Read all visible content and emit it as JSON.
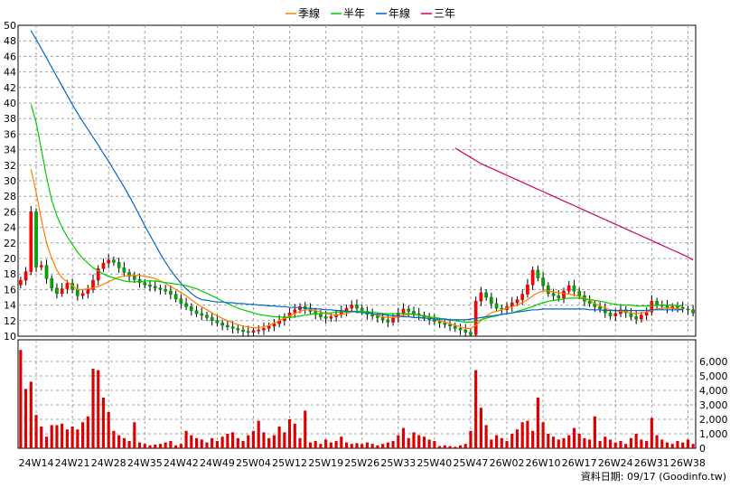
{
  "chart_data": {
    "type": "candlestick",
    "legend": [
      {
        "name": "季線",
        "color": "#ff7f00"
      },
      {
        "name": "半年",
        "color": "#00cc00"
      },
      {
        "name": "年線",
        "color": "#0066cc"
      },
      {
        "name": "三年",
        "color": "#cc0066"
      }
    ],
    "price_axis": {
      "ylim": [
        10,
        50
      ],
      "ticks": [
        10,
        12,
        14,
        16,
        18,
        20,
        22,
        24,
        26,
        28,
        30,
        32,
        34,
        36,
        38,
        40,
        42,
        44,
        46,
        48,
        50
      ]
    },
    "volume_axis": {
      "ylim": [
        0,
        7500
      ],
      "ticks": [
        0,
        1000,
        2000,
        3000,
        4000,
        5000,
        6000
      ],
      "tick_labels": [
        "0",
        "1,000",
        "2,000",
        "3,000",
        "4,000",
        "5,000",
        "6,000"
      ]
    },
    "x_ticks": [
      {
        "index": 3,
        "label": "24W14"
      },
      {
        "index": 10,
        "label": "24W21"
      },
      {
        "index": 17,
        "label": "24W28"
      },
      {
        "index": 24,
        "label": "24W35"
      },
      {
        "index": 31,
        "label": "24W42"
      },
      {
        "index": 38,
        "label": "24W49"
      },
      {
        "index": 45,
        "label": "25W04"
      },
      {
        "index": 52,
        "label": "25W12"
      },
      {
        "index": 59,
        "label": "25W19"
      },
      {
        "index": 66,
        "label": "25W26"
      },
      {
        "index": 73,
        "label": "25W33"
      },
      {
        "index": 80,
        "label": "25W40"
      },
      {
        "index": 87,
        "label": "25W47"
      },
      {
        "index": 94,
        "label": "26W02"
      },
      {
        "index": 101,
        "label": "26W10"
      },
      {
        "index": 108,
        "label": "26W17"
      },
      {
        "index": 115,
        "label": "26W24"
      },
      {
        "index": 122,
        "label": "26W31"
      },
      {
        "index": 129,
        "label": "26W38"
      }
    ],
    "bar_count": 131,
    "closes": [
      17.2,
      18.3,
      26.0,
      18.9,
      19.1,
      17.4,
      16.2,
      15.5,
      16.1,
      16.8,
      16.0,
      15.2,
      15.5,
      16.0,
      17.2,
      18.7,
      19.4,
      19.8,
      19.5,
      18.8,
      18.2,
      17.7,
      17.3,
      16.9,
      16.6,
      16.4,
      16.2,
      16.0,
      15.8,
      15.4,
      14.8,
      14.2,
      13.8,
      13.3,
      12.9,
      12.7,
      12.4,
      12.0,
      11.7,
      11.4,
      11.2,
      11.0,
      10.8,
      10.6,
      10.5,
      10.7,
      10.8,
      11.0,
      11.3,
      11.6,
      12.0,
      12.5,
      13.0,
      13.4,
      13.8,
      13.5,
      13.2,
      12.8,
      12.5,
      12.3,
      12.5,
      12.8,
      13.2,
      13.6,
      14.0,
      13.6,
      13.2,
      12.8,
      12.6,
      12.4,
      12.1,
      11.8,
      12.4,
      13.0,
      13.5,
      13.2,
      12.9,
      12.7,
      12.4,
      12.1,
      11.9,
      11.7,
      11.5,
      11.3,
      11.0,
      10.8,
      10.5,
      10.2,
      14.5,
      15.6,
      15.0,
      14.2,
      13.6,
      13.4,
      13.8,
      14.3,
      14.7,
      15.4,
      16.6,
      18.5,
      17.5,
      16.5,
      15.5,
      15.2,
      14.9,
      15.8,
      16.5,
      15.8,
      15.2,
      14.5,
      14.2,
      13.8,
      13.5,
      13.0,
      12.6,
      12.9,
      13.4,
      13.0,
      12.5,
      12.2,
      12.7,
      13.1,
      14.5,
      14.0,
      13.9,
      13.6,
      13.8,
      13.7,
      13.5,
      13.4,
      13.0
    ],
    "volumes": [
      6800,
      4100,
      4600,
      2300,
      1500,
      800,
      1600,
      1600,
      1700,
      1300,
      1500,
      1300,
      1800,
      2200,
      5500,
      5400,
      3500,
      2500,
      1200,
      900,
      700,
      500,
      1800,
      400,
      300,
      200,
      250,
      300,
      400,
      500,
      200,
      300,
      1200,
      900,
      700,
      600,
      400,
      700,
      500,
      800,
      1000,
      1100,
      700,
      500,
      900,
      1200,
      1900,
      1100,
      700,
      900,
      1500,
      1100,
      2000,
      1700,
      700,
      2600,
      400,
      500,
      300,
      600,
      400,
      500,
      800,
      400,
      300,
      350,
      300,
      400,
      300,
      200,
      300,
      400,
      500,
      900,
      1400,
      700,
      1100,
      900,
      800,
      600,
      500,
      150,
      200,
      150,
      100,
      200,
      300,
      1200,
      5400,
      2800,
      1600,
      600,
      900,
      700,
      500,
      1000,
      1300,
      1800,
      1900,
      1200,
      3500,
      1800,
      1000,
      800,
      600,
      700,
      900,
      1400,
      1000,
      700,
      600,
      2200,
      500,
      800,
      600,
      400,
      500,
      300,
      700,
      1000,
      600,
      500,
      2100,
      900,
      600,
      400,
      300,
      500,
      400,
      600,
      300
    ],
    "ma_quarter": [
      {
        "start": 0,
        "values": [
          null,
          null,
          31.5,
          28.5,
          25.0,
          22.0,
          20.0,
          18.5,
          17.5,
          17.0,
          16.5,
          16.0,
          16.0,
          16.1,
          16.2,
          16.4,
          16.7,
          17.0,
          17.3,
          17.6,
          17.7,
          17.8,
          17.8,
          17.8,
          17.7,
          17.6,
          17.4,
          17.1,
          16.8,
          16.4,
          16.0,
          15.6,
          15.2,
          14.7,
          14.2,
          13.8,
          13.4,
          13.0,
          12.6,
          12.3,
          12.0,
          11.7,
          11.5,
          11.3,
          11.2,
          11.1,
          11.1,
          11.2,
          11.4,
          11.7,
          12.0,
          12.3,
          12.6,
          12.9,
          13.2,
          13.4,
          13.4,
          13.3,
          13.1,
          12.9,
          12.8,
          12.7,
          12.8,
          12.9,
          13.1,
          13.2,
          13.2,
          13.1,
          12.9,
          12.7,
          12.5,
          12.4,
          12.4,
          12.5,
          12.7,
          12.8,
          12.8,
          12.7,
          12.6,
          12.4,
          12.2,
          12.0,
          11.8,
          11.6,
          11.4,
          11.2,
          11.0,
          11.0,
          11.4,
          12.0,
          12.6,
          13.0,
          13.2,
          13.4,
          13.6,
          13.8,
          14.0,
          14.3,
          14.7,
          15.2,
          15.6,
          15.8,
          15.8,
          15.7,
          15.6,
          15.5,
          15.4,
          15.3,
          15.1,
          14.9,
          14.6,
          14.2,
          13.9,
          13.6,
          13.4,
          13.3,
          13.2,
          13.1,
          13.0,
          12.9,
          13.0,
          13.1,
          13.3,
          13.5,
          13.6,
          13.6,
          13.6,
          13.5,
          13.5
        ]
      }
    ],
    "ma_half": [
      {
        "start": 0,
        "values": [
          null,
          null,
          39.8,
          37.5,
          34.0,
          30.5,
          27.5,
          25.5,
          24.0,
          22.8,
          21.8,
          20.8,
          20.0,
          19.4,
          18.8,
          18.4,
          18.0,
          17.7,
          17.5,
          17.3,
          17.1,
          17.0,
          17.0,
          17.0,
          17.1,
          17.1,
          17.1,
          17.0,
          16.9,
          16.8,
          16.7,
          16.6,
          16.5,
          16.3,
          16.1,
          15.8,
          15.5,
          15.2,
          14.9,
          14.5,
          14.2,
          13.9,
          13.6,
          13.4,
          13.2,
          13.0,
          12.8,
          12.7,
          12.6,
          12.5,
          12.5,
          12.4,
          12.4,
          12.5,
          12.6,
          12.7,
          12.8,
          12.9,
          12.9,
          13.0,
          13.0,
          13.1,
          13.1,
          13.1,
          13.2,
          13.2,
          13.2,
          13.1,
          13.1,
          13.0,
          12.9,
          12.9,
          12.9,
          12.9,
          12.9,
          12.9,
          12.8,
          12.7,
          12.6,
          12.5,
          12.4,
          12.3,
          12.2,
          12.1,
          12.0,
          11.9,
          11.8,
          11.8,
          11.9,
          12.1,
          12.3,
          12.5,
          12.6,
          12.8,
          12.9,
          13.0,
          13.2,
          13.4,
          13.6,
          13.8,
          14.1,
          14.3,
          14.5,
          14.6,
          14.7,
          14.8,
          14.9,
          14.9,
          14.9,
          14.8,
          14.7,
          14.6,
          14.5,
          14.4,
          14.2,
          14.1,
          14.0,
          14.0,
          14.0,
          13.9,
          13.9,
          13.9,
          13.9,
          14.0,
          14.0,
          14.0,
          14.0,
          13.9,
          13.9
        ]
      }
    ],
    "ma_year": [
      {
        "start": 0,
        "values": [
          null,
          null,
          49.3,
          48.2,
          47.0,
          45.8,
          44.6,
          43.4,
          42.2,
          41.0,
          39.8,
          38.7,
          37.6,
          36.6,
          35.6,
          34.6,
          33.5,
          32.5,
          31.4,
          30.3,
          29.2,
          28.0,
          26.8,
          25.5,
          24.2,
          23.0,
          21.8,
          20.6,
          19.5,
          18.5,
          17.6,
          16.8,
          16.1,
          15.5,
          15.0,
          14.7,
          14.6,
          14.5,
          14.4,
          14.4,
          14.3,
          14.3,
          14.2,
          14.2,
          14.1,
          14.1,
          14.0,
          14.0,
          13.9,
          13.9,
          13.8,
          13.8,
          13.7,
          13.7,
          13.7,
          13.6,
          13.6,
          13.5,
          13.5,
          13.4,
          13.4,
          13.3,
          13.3,
          13.2,
          13.2,
          13.1,
          13.0,
          13.0,
          12.9,
          12.8,
          12.8,
          12.7,
          12.6,
          12.6,
          12.5,
          12.5,
          12.4,
          12.4,
          12.3,
          12.3,
          12.2,
          12.2,
          12.2,
          12.1,
          12.1,
          12.1,
          12.1,
          12.2,
          12.3,
          12.4,
          12.5,
          12.6,
          12.7,
          12.8,
          12.9,
          13.0,
          13.1,
          13.2,
          13.3,
          13.4,
          13.4,
          13.5,
          13.5,
          13.5,
          13.5,
          13.5,
          13.5,
          13.5,
          13.5,
          13.5,
          13.4,
          13.4,
          13.4,
          13.3,
          13.3,
          13.3,
          13.3,
          13.3,
          13.3,
          13.3,
          13.3,
          13.3,
          13.4,
          13.4,
          13.4,
          13.4,
          13.4,
          13.4,
          13.4
        ]
      }
    ],
    "ma_three_year": [
      {
        "start": 84,
        "values": [
          34.2,
          33.8,
          33.4,
          33.0,
          32.6,
          32.2,
          31.9,
          31.6,
          31.3,
          31.0,
          30.7,
          30.4,
          30.1,
          29.8,
          29.5,
          29.2,
          28.9,
          28.6,
          28.3,
          28.0,
          27.7,
          27.4,
          27.1,
          26.8,
          26.5,
          26.2,
          25.9,
          25.6,
          25.3,
          25.0,
          24.7,
          24.4,
          24.1,
          23.8,
          23.5,
          23.2,
          22.9,
          22.6,
          22.3,
          22.0,
          21.7,
          21.4,
          21.1,
          20.8,
          20.5,
          20.2,
          19.8
        ]
      }
    ],
    "footer": "資料日期: 09/17  (Goodinfo.tw)"
  }
}
